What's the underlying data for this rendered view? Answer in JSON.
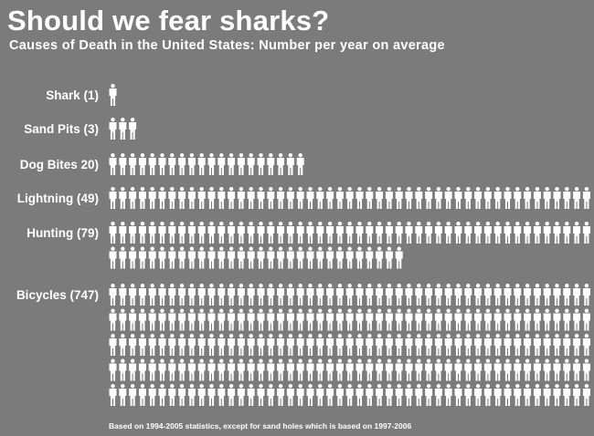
{
  "chart_data": {
    "type": "pictograph",
    "title": "Should we fear sharks?",
    "subtitle": "Causes of Death in the United States: Number per year on average",
    "footnote": "Based on 1994-2005 statistics, except for sand holes which is based on 1997-2006",
    "icon": "person-icon",
    "categories": [
      {
        "label": "Shark (1)",
        "value": 1
      },
      {
        "label": "Sand Pits (3)",
        "value": 3
      },
      {
        "label": "Dog Bites  20)",
        "value": 20
      },
      {
        "label": "Lightning (49)",
        "value": 49
      },
      {
        "label": "Hunting (79)",
        "value": 79
      },
      {
        "label": "Bicycles (747)",
        "value": 747
      }
    ],
    "colors": {
      "background": "#7b7b7b",
      "text": "#ffffff",
      "icon": "#ffffff"
    }
  }
}
